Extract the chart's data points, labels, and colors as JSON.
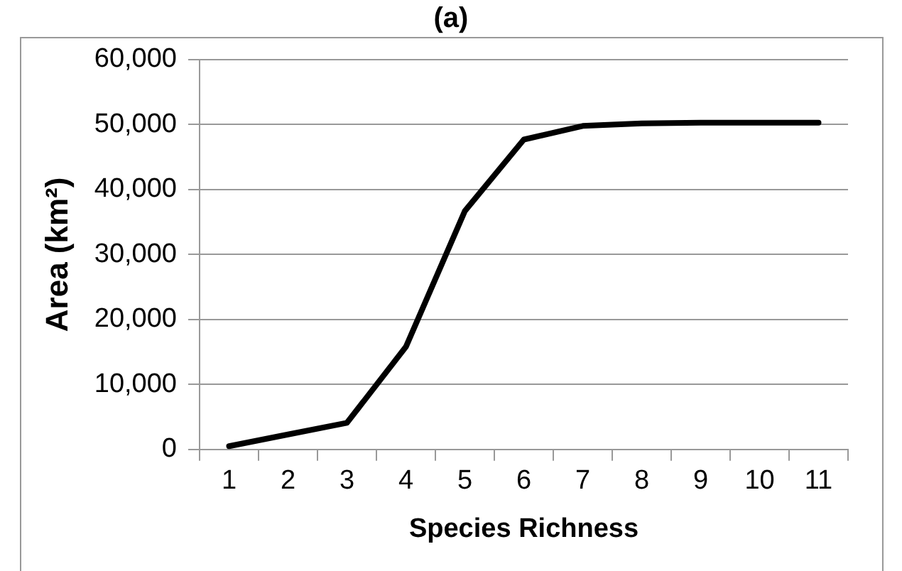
{
  "chart_data": {
    "type": "line",
    "title": "(a)",
    "xlabel": "Species Richness",
    "ylabel": "Area (km²)",
    "categories": [
      "1",
      "2",
      "3",
      "4",
      "5",
      "6",
      "7",
      "8",
      "9",
      "10",
      "11"
    ],
    "series": [
      {
        "color": "#000000",
        "values": [
          500,
          2300,
          4100,
          15800,
          36700,
          47700,
          49800,
          50200,
          50300,
          50300,
          50300
        ]
      }
    ],
    "ylim": [
      0,
      60000
    ],
    "yticks": [
      0,
      {
        "value": 10000,
        "label": "10,000"
      },
      {
        "value": 20000,
        "label": "20,000"
      },
      {
        "value": 30000,
        "label": "30,000"
      },
      {
        "value": 40000,
        "label": "40,000"
      },
      {
        "value": 50000,
        "label": "50,000"
      },
      {
        "value": 60000,
        "label": "60,000"
      }
    ],
    "grid": "y",
    "legend": false,
    "marker": "none",
    "line_style": "solid"
  }
}
